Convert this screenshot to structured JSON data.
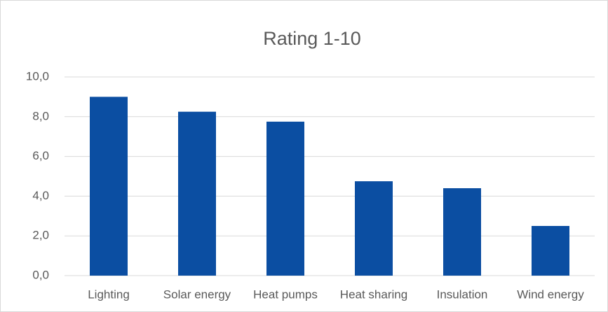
{
  "chart_data": {
    "type": "bar",
    "title": "Rating 1-10",
    "categories": [
      "Lighting",
      "Solar energy",
      "Heat pumps",
      "Heat sharing",
      "Insulation",
      "Wind energy"
    ],
    "values": [
      9.0,
      8.25,
      7.75,
      4.75,
      4.4,
      2.5
    ],
    "color": "#0b4ea2",
    "ylim": [
      0,
      10
    ],
    "yticks": [
      {
        "value": 0,
        "label": "0,0"
      },
      {
        "value": 2,
        "label": "2,0"
      },
      {
        "value": 4,
        "label": "4,0"
      },
      {
        "value": 6,
        "label": "6,0"
      },
      {
        "value": 8,
        "label": "8,0"
      },
      {
        "value": 10,
        "label": "10,0"
      }
    ],
    "grid": true
  }
}
